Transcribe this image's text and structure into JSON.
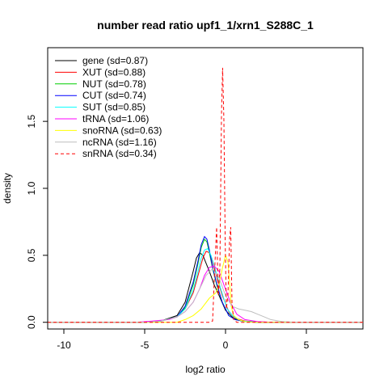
{
  "chart_data": {
    "type": "line",
    "title": "number read ratio upf1_1/xrn1_S288C_1",
    "xlabel": "log2 ratio",
    "ylabel": "density",
    "xlim": [
      -11,
      8.5
    ],
    "ylim": [
      -0.05,
      2.05
    ],
    "xticks": [
      -10,
      -5,
      0,
      5
    ],
    "xtick_labels": [
      "-10",
      "-5",
      "0",
      "5"
    ],
    "yticks": [
      0.0,
      0.5,
      1.0,
      1.5
    ],
    "ytick_labels": [
      "0.0",
      "0.5",
      "1.0",
      "1.5"
    ],
    "legend_position": "top-left",
    "series": [
      {
        "name": "gene (sd=0.87)",
        "color": "#000000",
        "dash": "solid",
        "x": [
          -11,
          -5,
          -4,
          -3,
          -2.5,
          -2,
          -1.8,
          -1.6,
          -1.4,
          -1.2,
          -1.0,
          -0.7,
          -0.4,
          0,
          0.5,
          1,
          2,
          3,
          8.5
        ],
        "y": [
          0,
          0,
          0.01,
          0.05,
          0.15,
          0.38,
          0.48,
          0.52,
          0.5,
          0.44,
          0.38,
          0.28,
          0.2,
          0.09,
          0.03,
          0.01,
          0.003,
          0,
          0
        ]
      },
      {
        "name": "XUT (sd=0.88)",
        "color": "#ff0000",
        "dash": "solid",
        "x": [
          -11,
          -5,
          -4,
          -3,
          -2.5,
          -2,
          -1.7,
          -1.4,
          -1.2,
          -1.0,
          -0.8,
          -0.5,
          -0.2,
          0.2,
          0.6,
          1.2,
          2,
          3,
          8.5
        ],
        "y": [
          0,
          0,
          0.01,
          0.04,
          0.1,
          0.22,
          0.35,
          0.48,
          0.53,
          0.52,
          0.45,
          0.32,
          0.2,
          0.08,
          0.03,
          0.01,
          0.002,
          0,
          0
        ]
      },
      {
        "name": "NUT (sd=0.78)",
        "color": "#00cd00",
        "dash": "solid",
        "x": [
          -11,
          -5,
          -4,
          -3,
          -2.5,
          -2,
          -1.7,
          -1.5,
          -1.3,
          -1.15,
          -1.0,
          -0.8,
          -0.5,
          -0.2,
          0.2,
          0.6,
          1.2,
          2,
          8.5
        ],
        "y": [
          0,
          0,
          0.01,
          0.04,
          0.11,
          0.28,
          0.44,
          0.56,
          0.62,
          0.6,
          0.52,
          0.4,
          0.26,
          0.15,
          0.05,
          0.02,
          0.005,
          0,
          0
        ]
      },
      {
        "name": "CUT (sd=0.74)",
        "color": "#0000ff",
        "dash": "solid",
        "x": [
          -11,
          -5,
          -4,
          -3,
          -2.5,
          -2,
          -1.7,
          -1.5,
          -1.3,
          -1.15,
          -1.0,
          -0.8,
          -0.5,
          -0.2,
          0.2,
          0.6,
          1.2,
          2,
          8.5
        ],
        "y": [
          0,
          0,
          0.01,
          0.04,
          0.12,
          0.3,
          0.46,
          0.58,
          0.64,
          0.62,
          0.54,
          0.41,
          0.27,
          0.15,
          0.05,
          0.02,
          0.005,
          0,
          0
        ]
      },
      {
        "name": "SUT (sd=0.85)",
        "color": "#00ffff",
        "dash": "solid",
        "x": [
          -11,
          -5,
          -4,
          -3,
          -2.5,
          -2,
          -1.7,
          -1.5,
          -1.3,
          -1.1,
          -0.9,
          -0.6,
          -0.3,
          0.1,
          0.5,
          1.0,
          2,
          3,
          8.5
        ],
        "y": [
          0,
          0,
          0.01,
          0.04,
          0.1,
          0.24,
          0.38,
          0.48,
          0.54,
          0.55,
          0.5,
          0.38,
          0.25,
          0.1,
          0.04,
          0.01,
          0.002,
          0,
          0
        ]
      },
      {
        "name": "tRNA (sd=1.06)",
        "color": "#ff00ff",
        "dash": "solid",
        "x": [
          -11,
          -5.5,
          -4.5,
          -3.5,
          -3,
          -2.5,
          -2,
          -1.6,
          -1.3,
          -1.0,
          -0.7,
          -0.4,
          -0.1,
          0.3,
          0.7,
          1.2,
          2,
          3,
          8.5
        ],
        "y": [
          0,
          0,
          0.01,
          0.02,
          0.04,
          0.08,
          0.15,
          0.25,
          0.35,
          0.41,
          0.42,
          0.38,
          0.28,
          0.15,
          0.06,
          0.02,
          0.005,
          0,
          0
        ]
      },
      {
        "name": "snoRNA (sd=0.63)",
        "color": "#ffff00",
        "dash": "solid",
        "x": [
          -11,
          -3,
          -2.5,
          -2,
          -1.5,
          -1.0,
          -0.6,
          -0.4,
          -0.2,
          0,
          0.15,
          0.25,
          0.35,
          0.5,
          0.8,
          1.2,
          2,
          8.5
        ],
        "y": [
          0,
          0,
          0.02,
          0.05,
          0.1,
          0.18,
          0.22,
          0.28,
          0.4,
          0.5,
          0.45,
          0.3,
          0.12,
          0.05,
          0.02,
          0.005,
          0,
          0
        ]
      },
      {
        "name": "ncRNA (sd=1.16)",
        "color": "#bebebe",
        "dash": "solid",
        "x": [
          -11,
          -5,
          -4,
          -3,
          -2.5,
          -2,
          -1.6,
          -1.2,
          -0.8,
          -0.4,
          0,
          0.4,
          0.8,
          1.2,
          1.6,
          2.0,
          2.4,
          2.8,
          3.5,
          4.5,
          8.5
        ],
        "y": [
          0,
          0,
          0.01,
          0.04,
          0.08,
          0.15,
          0.25,
          0.35,
          0.4,
          0.33,
          0.2,
          0.12,
          0.1,
          0.09,
          0.08,
          0.06,
          0.04,
          0.02,
          0.005,
          0,
          0
        ]
      },
      {
        "name": "snRNA (sd=0.34)",
        "color": "#ff0000",
        "dash": "dashed",
        "x": [
          -11,
          -1.0,
          -0.8,
          -0.65,
          -0.55,
          -0.45,
          -0.35,
          -0.25,
          -0.18,
          -0.1,
          -0.02,
          0.05,
          0.15,
          0.25,
          0.32,
          0.4,
          0.5,
          0.7,
          8.5
        ],
        "y": [
          0,
          0,
          0.01,
          0.45,
          0.71,
          0.2,
          0.4,
          1.55,
          1.9,
          1.5,
          0.6,
          0.1,
          0.2,
          0.62,
          0.71,
          0.15,
          0.02,
          0,
          0
        ]
      }
    ]
  }
}
